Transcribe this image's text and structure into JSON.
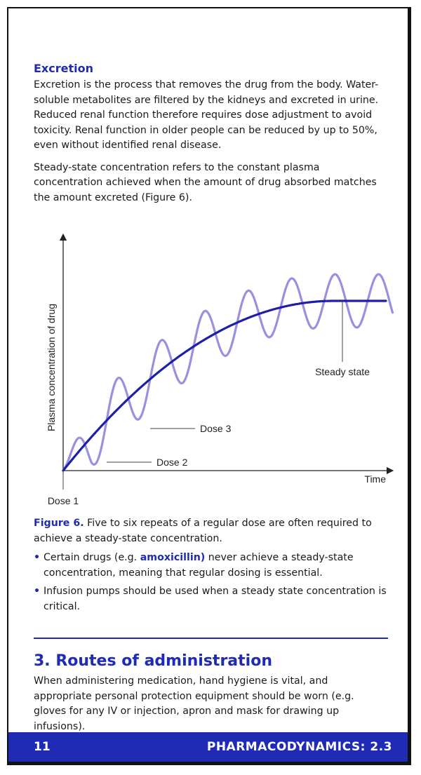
{
  "excretion": {
    "heading": "Excretion",
    "para1": "Excretion is the process that removes the drug from the body. Water-soluble metabolites are filtered by the kidneys and excreted in urine. Reduced renal function therefore requires dose adjustment to avoid toxicity. Renal function in older people can be reduced by up to 50%, even without identified renal disease.",
    "para2": "Steady-state concentration refers to the constant plasma concentration achieved when the amount of drug absorbed matches the amount excreted (Figure 6)."
  },
  "chart_data": {
    "type": "line",
    "xlabel": "Time",
    "ylabel": "Plasma concentration of drug",
    "series": [
      {
        "name": "",
        "kind": "dose-oscillation",
        "color": "#9b8fe0"
      },
      {
        "name": "",
        "kind": "mean-curve",
        "color": "#1d1fa8"
      }
    ],
    "annotations": [
      "Dose 1",
      "Dose 2",
      "Dose 3",
      "Steady state"
    ]
  },
  "caption": {
    "label": "Figure 6.",
    "text": " Five to six repeats of a regular dose are often required to achieve a steady-state concentration."
  },
  "bullets": [
    {
      "pre": "Certain drugs (e.g. ",
      "drug": "amoxicillin)",
      "post": " never achieve a steady-state concentration, meaning that regular dosing is essential."
    },
    {
      "pre": "Infusion pumps should be used when a steady state concentration is critical.",
      "drug": "",
      "post": ""
    }
  ],
  "bullet_symbol": "•",
  "routes": {
    "heading": "3. Routes of administration",
    "para": "When administering medication, hand hygiene is vital, and appropriate personal protection equipment should be worn (e.g. gloves for any IV or injection, apron and mask for drawing up infusions)."
  },
  "footer": {
    "page_number": "11",
    "running_title": "PHARMACODYNAMICS: 2.3"
  },
  "colors": {
    "accent": "#1f2bb5"
  }
}
